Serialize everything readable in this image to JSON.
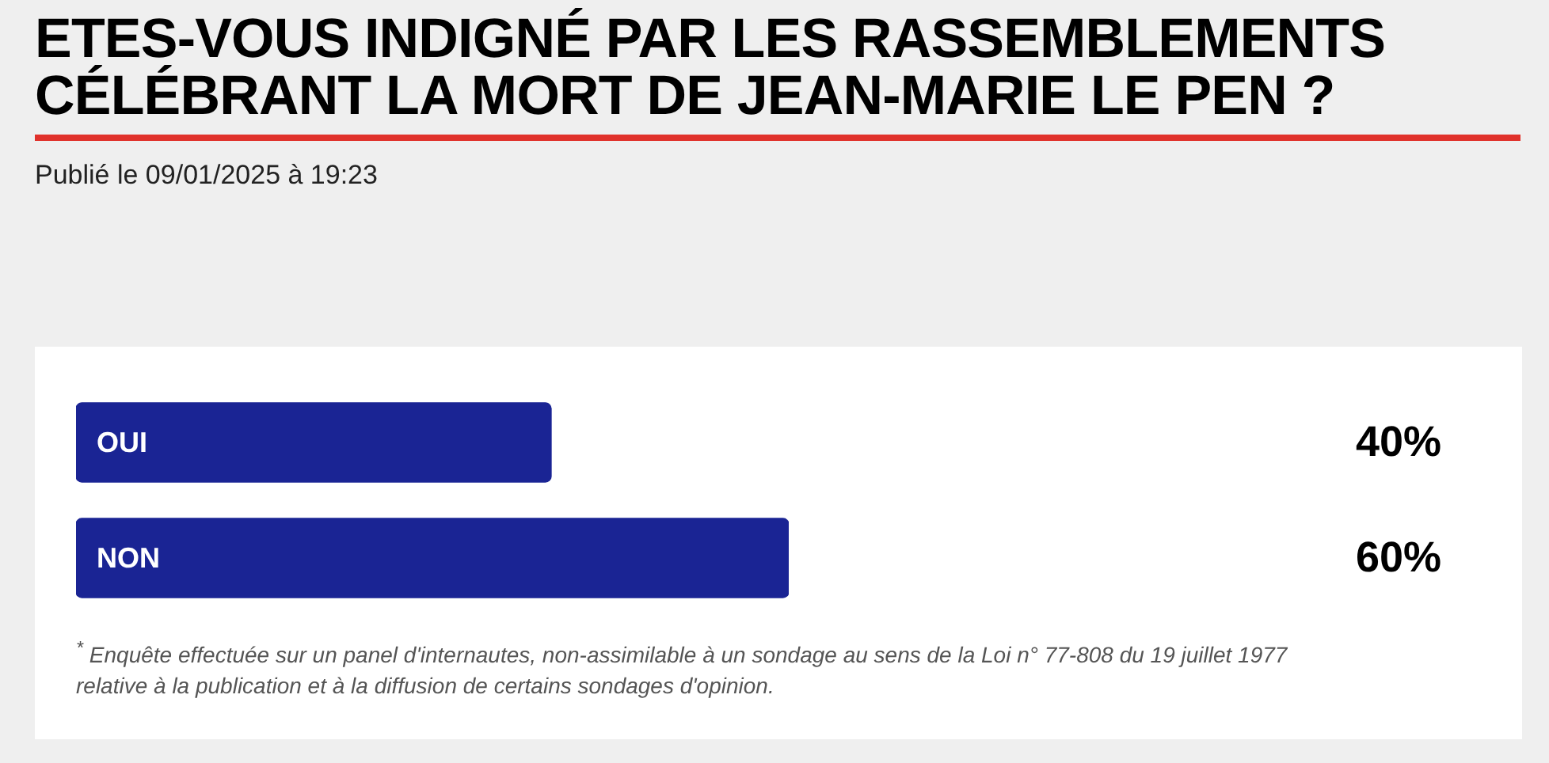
{
  "chart_data": {
    "type": "bar",
    "orientation": "horizontal",
    "title": "ETES-VOUS INDIGNÉ PAR LES RASSEMBLEMENTS CÉLÉBRANT LA MORT DE JEAN-MARIE LE PEN ?",
    "subtitle": "Publié le 09/01/2025 à 19:23",
    "categories": [
      "OUI",
      "NON"
    ],
    "values": [
      40,
      60
    ],
    "color": "#1a2494",
    "value_labels": [
      "40%",
      "60%"
    ],
    "tick_labels": "y",
    "annotations": [
      "$^{*}$ Enquête effectuée sur un panel d'internautes, non-assimilable à un sondage au sens de la Loi n° 77-808 du 19 juillet 1977 relative à la publication et à la diffusion de certains sondages d'opinion."
    ]
  }
}
